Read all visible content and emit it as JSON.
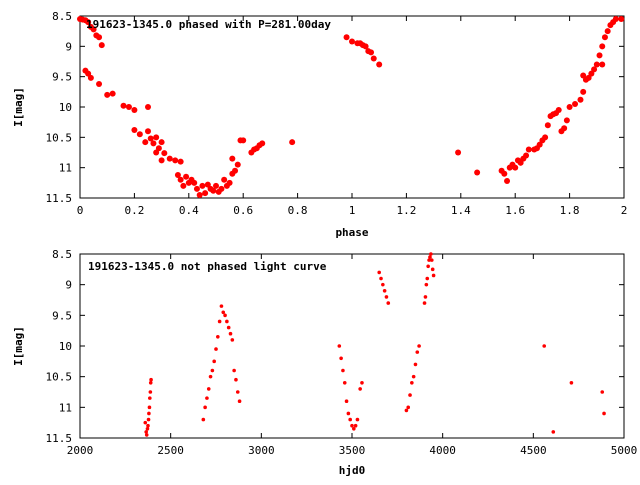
{
  "chart_data": [
    {
      "type": "scatter",
      "title": "191623-1345.0 phased with P=281.00day",
      "xlabel": "phase",
      "ylabel": "I[mag]",
      "xlim": [
        0,
        2
      ],
      "ylim": [
        8.5,
        11.5
      ],
      "y_inverted": true,
      "x_ticks": [
        0,
        0.2,
        0.4,
        0.6,
        0.8,
        1,
        1.2,
        1.4,
        1.6,
        1.8,
        2
      ],
      "x_tick_labels": [
        "0",
        "0.2",
        "0.4",
        "0.6",
        "0.8",
        "1",
        "1.2",
        "1.4",
        "1.6",
        "1.8",
        "2"
      ],
      "y_ticks": [
        8.5,
        9,
        9.5,
        10,
        10.5,
        11,
        11.5
      ],
      "y_tick_labels": [
        "8.5",
        "9",
        "9.5",
        "10",
        "10.5",
        "11",
        "11.5"
      ],
      "grid": false,
      "marker_color": "#ff0000",
      "series": [
        {
          "points": [
            [
              0.0,
              8.55
            ],
            [
              0.01,
              8.56
            ],
            [
              0.02,
              8.57
            ],
            [
              0.03,
              8.6
            ],
            [
              0.04,
              8.68
            ],
            [
              0.05,
              8.72
            ],
            [
              0.06,
              8.82
            ],
            [
              0.07,
              8.85
            ],
            [
              0.08,
              8.98
            ],
            [
              0.02,
              9.4
            ],
            [
              0.03,
              9.45
            ],
            [
              0.04,
              9.52
            ],
            [
              0.07,
              9.62
            ],
            [
              0.1,
              9.8
            ],
            [
              0.12,
              9.78
            ],
            [
              0.16,
              9.98
            ],
            [
              0.18,
              10.0
            ],
            [
              0.2,
              10.05
            ],
            [
              0.25,
              10.0
            ],
            [
              0.2,
              10.38
            ],
            [
              0.22,
              10.45
            ],
            [
              0.24,
              10.58
            ],
            [
              0.25,
              10.4
            ],
            [
              0.26,
              10.52
            ],
            [
              0.27,
              10.6
            ],
            [
              0.28,
              10.5
            ],
            [
              0.29,
              10.68
            ],
            [
              0.3,
              10.58
            ],
            [
              0.28,
              10.75
            ],
            [
              0.31,
              10.76
            ],
            [
              0.3,
              10.88
            ],
            [
              0.33,
              10.85
            ],
            [
              0.35,
              10.88
            ],
            [
              0.37,
              10.9
            ],
            [
              0.36,
              11.12
            ],
            [
              0.37,
              11.2
            ],
            [
              0.38,
              11.3
            ],
            [
              0.39,
              11.15
            ],
            [
              0.4,
              11.25
            ],
            [
              0.41,
              11.2
            ],
            [
              0.42,
              11.25
            ],
            [
              0.43,
              11.35
            ],
            [
              0.44,
              11.45
            ],
            [
              0.45,
              11.3
            ],
            [
              0.46,
              11.42
            ],
            [
              0.47,
              11.28
            ],
            [
              0.48,
              11.35
            ],
            [
              0.49,
              11.38
            ],
            [
              0.5,
              11.3
            ],
            [
              0.51,
              11.4
            ],
            [
              0.52,
              11.35
            ],
            [
              0.53,
              11.2
            ],
            [
              0.54,
              11.3
            ],
            [
              0.55,
              11.25
            ],
            [
              0.56,
              11.1
            ],
            [
              0.57,
              11.05
            ],
            [
              0.58,
              10.95
            ],
            [
              0.56,
              10.85
            ],
            [
              0.59,
              10.55
            ],
            [
              0.6,
              10.55
            ],
            [
              0.63,
              10.75
            ],
            [
              0.64,
              10.7
            ],
            [
              0.65,
              10.68
            ],
            [
              0.66,
              10.63
            ],
            [
              0.67,
              10.6
            ],
            [
              0.78,
              10.58
            ],
            [
              0.98,
              8.85
            ],
            [
              1.0,
              8.92
            ],
            [
              1.02,
              8.95
            ],
            [
              1.03,
              8.95
            ],
            [
              1.04,
              8.98
            ],
            [
              1.05,
              9.0
            ],
            [
              1.06,
              9.08
            ],
            [
              1.07,
              9.1
            ],
            [
              1.08,
              9.2
            ],
            [
              1.1,
              9.3
            ],
            [
              1.39,
              10.75
            ],
            [
              1.46,
              11.08
            ],
            [
              1.55,
              11.05
            ],
            [
              1.56,
              11.1
            ],
            [
              1.57,
              11.22
            ],
            [
              1.58,
              11.0
            ],
            [
              1.59,
              10.95
            ],
            [
              1.6,
              11.0
            ],
            [
              1.61,
              10.88
            ],
            [
              1.62,
              10.92
            ],
            [
              1.63,
              10.85
            ],
            [
              1.64,
              10.8
            ],
            [
              1.65,
              10.7
            ],
            [
              1.67,
              10.7
            ],
            [
              1.68,
              10.68
            ],
            [
              1.69,
              10.62
            ],
            [
              1.7,
              10.55
            ],
            [
              1.71,
              10.5
            ],
            [
              1.72,
              10.3
            ],
            [
              1.73,
              10.15
            ],
            [
              1.74,
              10.12
            ],
            [
              1.75,
              10.1
            ],
            [
              1.76,
              10.05
            ],
            [
              1.77,
              10.4
            ],
            [
              1.78,
              10.35
            ],
            [
              1.79,
              10.22
            ],
            [
              1.8,
              10.0
            ],
            [
              1.82,
              9.95
            ],
            [
              1.84,
              9.88
            ],
            [
              1.85,
              9.75
            ],
            [
              1.86,
              9.55
            ],
            [
              1.87,
              9.52
            ],
            [
              1.88,
              9.45
            ],
            [
              1.89,
              9.38
            ],
            [
              1.9,
              9.3
            ],
            [
              1.91,
              9.15
            ],
            [
              1.92,
              9.0
            ],
            [
              1.93,
              8.85
            ],
            [
              1.94,
              8.75
            ],
            [
              1.95,
              8.65
            ],
            [
              1.96,
              8.6
            ],
            [
              1.97,
              8.55
            ],
            [
              1.99,
              8.55
            ],
            [
              1.92,
              9.3
            ],
            [
              1.85,
              9.48
            ]
          ]
        }
      ]
    },
    {
      "type": "scatter",
      "title": "191623-1345.0 not phased light curve",
      "xlabel": "hjd0",
      "ylabel": "I[mag]",
      "xlim": [
        2000,
        5000
      ],
      "ylim": [
        8.5,
        11.5
      ],
      "y_inverted": true,
      "x_ticks": [
        2000,
        2500,
        3000,
        3500,
        4000,
        4500,
        5000
      ],
      "x_tick_labels": [
        "2000",
        "2500",
        "3000",
        "3500",
        "4000",
        "4500",
        "5000"
      ],
      "y_ticks": [
        8.5,
        9,
        9.5,
        10,
        10.5,
        11,
        11.5
      ],
      "y_tick_labels": [
        "8.5",
        "9",
        "9.5",
        "10",
        "10.5",
        "11",
        "11.5"
      ],
      "grid": false,
      "marker_color": "#ff0000",
      "series": [
        {
          "points": [
            [
              2360,
              11.25
            ],
            [
              2365,
              11.4
            ],
            [
              2368,
              11.45
            ],
            [
              2372,
              11.35
            ],
            [
              2375,
              11.3
            ],
            [
              2378,
              11.2
            ],
            [
              2380,
              11.1
            ],
            [
              2383,
              11.0
            ],
            [
              2385,
              10.85
            ],
            [
              2388,
              10.75
            ],
            [
              2390,
              10.6
            ],
            [
              2392,
              10.55
            ],
            [
              2680,
              11.2
            ],
            [
              2690,
              11.0
            ],
            [
              2700,
              10.85
            ],
            [
              2710,
              10.7
            ],
            [
              2720,
              10.5
            ],
            [
              2730,
              10.4
            ],
            [
              2740,
              10.25
            ],
            [
              2750,
              10.05
            ],
            [
              2760,
              9.85
            ],
            [
              2770,
              9.6
            ],
            [
              2780,
              9.35
            ],
            [
              2790,
              9.45
            ],
            [
              2800,
              9.5
            ],
            [
              2810,
              9.6
            ],
            [
              2820,
              9.7
            ],
            [
              2830,
              9.8
            ],
            [
              2840,
              9.9
            ],
            [
              2850,
              10.4
            ],
            [
              2860,
              10.55
            ],
            [
              2870,
              10.75
            ],
            [
              2880,
              10.9
            ],
            [
              3430,
              10.0
            ],
            [
              3440,
              10.2
            ],
            [
              3450,
              10.4
            ],
            [
              3460,
              10.6
            ],
            [
              3470,
              10.9
            ],
            [
              3480,
              11.1
            ],
            [
              3490,
              11.2
            ],
            [
              3500,
              11.3
            ],
            [
              3510,
              11.35
            ],
            [
              3520,
              11.3
            ],
            [
              3530,
              11.2
            ],
            [
              3545,
              10.7
            ],
            [
              3555,
              10.6
            ],
            [
              3650,
              8.8
            ],
            [
              3660,
              8.9
            ],
            [
              3670,
              9.0
            ],
            [
              3680,
              9.1
            ],
            [
              3690,
              9.2
            ],
            [
              3700,
              9.3
            ],
            [
              3800,
              11.05
            ],
            [
              3810,
              11.0
            ],
            [
              3820,
              10.8
            ],
            [
              3830,
              10.6
            ],
            [
              3840,
              10.5
            ],
            [
              3850,
              10.3
            ],
            [
              3860,
              10.1
            ],
            [
              3870,
              10.0
            ],
            [
              3900,
              9.3
            ],
            [
              3905,
              9.2
            ],
            [
              3910,
              9.0
            ],
            [
              3915,
              8.9
            ],
            [
              3920,
              8.7
            ],
            [
              3925,
              8.6
            ],
            [
              3930,
              8.55
            ],
            [
              3935,
              8.5
            ],
            [
              3940,
              8.6
            ],
            [
              3945,
              8.75
            ],
            [
              3950,
              8.85
            ],
            [
              4560,
              10.0
            ],
            [
              4610,
              11.4
            ],
            [
              4710,
              10.6
            ],
            [
              4880,
              10.75
            ],
            [
              4890,
              11.1
            ]
          ]
        }
      ]
    }
  ]
}
